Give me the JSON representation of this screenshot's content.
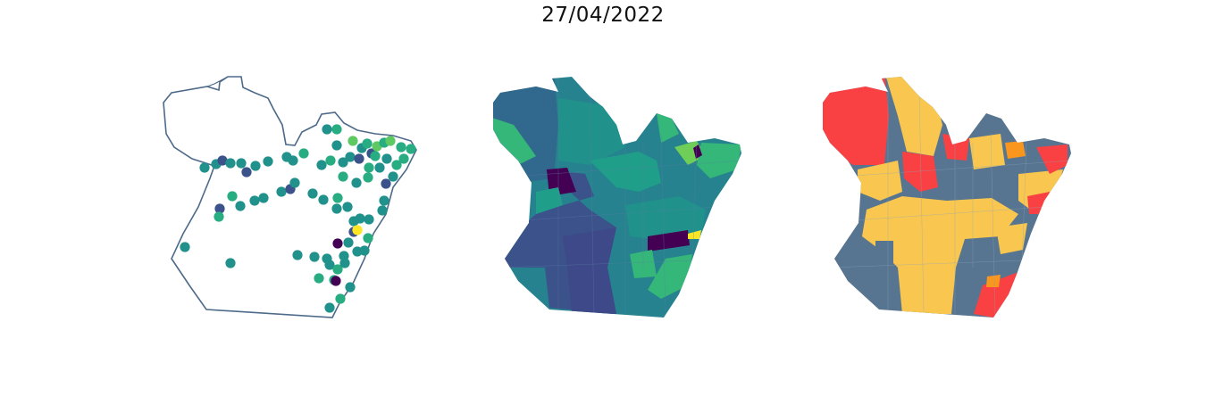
{
  "figure": {
    "title": "27/04/2022"
  },
  "maps": [
    {
      "panel": "points",
      "style": "outline with colored station markers",
      "colors": {
        "outline": "#4d6a8a",
        "scale": [
          "#440154",
          "#3b528b",
          "#21918c",
          "#27ad81",
          "#5ec962",
          "#fde725"
        ]
      }
    },
    {
      "panel": "choropleth-viridis",
      "style": "municipality polygons, viridis scale",
      "colors": {
        "scale": [
          "#3b528b",
          "#31688e",
          "#26828e",
          "#1f9e89",
          "#35b779",
          "#6ece58",
          "#440154",
          "#fde725"
        ]
      }
    },
    {
      "panel": "choropleth-categorical",
      "style": "municipality polygons, 4 categories",
      "colors": {
        "red": "#f94144",
        "yellow": "#f9c74f",
        "orange": "#f8961e",
        "slate": "#577590"
      }
    }
  ]
}
